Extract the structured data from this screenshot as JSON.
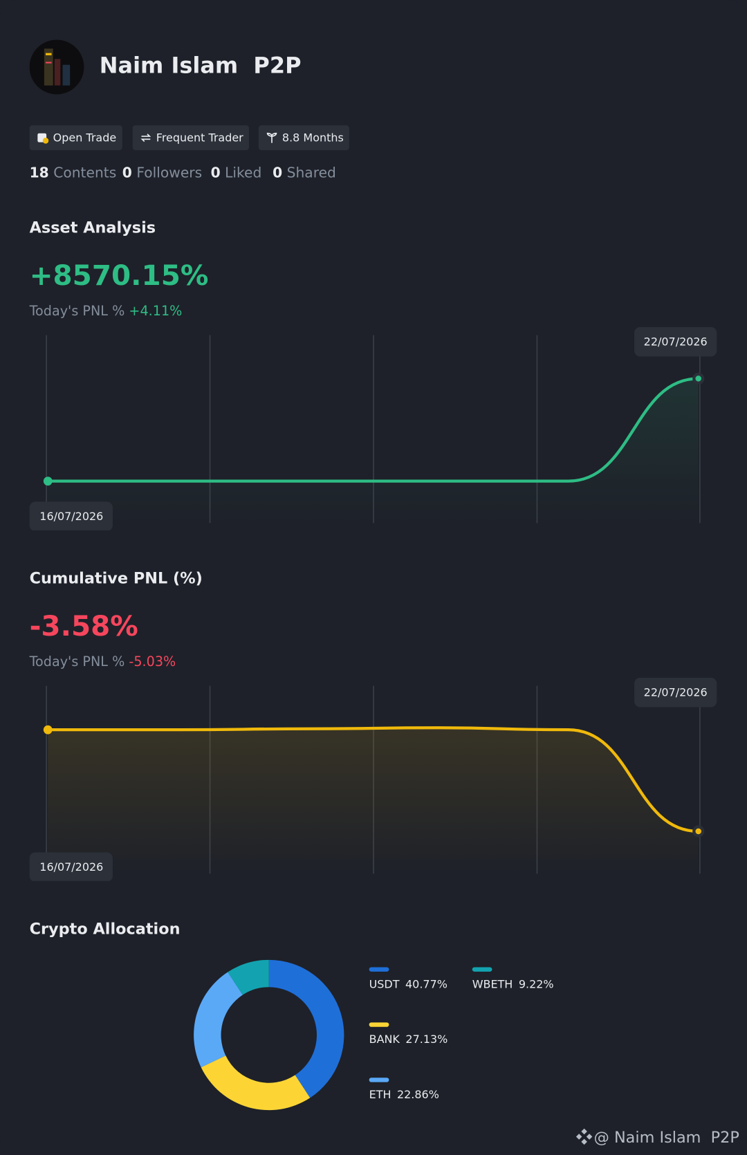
{
  "profile": {
    "name": "Naim Islam  P2P",
    "badges": [
      "Open Trade",
      "Frequent Trader",
      "8.8 Months"
    ],
    "stats": [
      {
        "value": "18",
        "label": "Contents"
      },
      {
        "value": "0",
        "label": "Followers"
      },
      {
        "value": "0",
        "label": "Liked"
      },
      {
        "value": "0",
        "label": "Shared"
      }
    ]
  },
  "asset_analysis": {
    "title": "Asset Analysis",
    "total": "+8570.15%",
    "today_label": "Today's PNL %",
    "today_value": "+4.11%",
    "chart_data": {
      "type": "line",
      "categories": [
        "16/07/2026",
        null,
        null,
        null,
        null,
        "22/07/2026"
      ],
      "values": [
        0,
        0,
        0,
        0,
        0,
        8570.15
      ],
      "color": "#2ebd85",
      "ylim": [
        -3500,
        12200
      ]
    }
  },
  "cumulative_pnl": {
    "title": "Cumulative PNL (%)",
    "total": "-3.58%",
    "today_label": "Today's PNL %",
    "today_value": "-5.03%",
    "chart_data": {
      "type": "line",
      "categories": [
        "16/07/2026",
        null,
        null,
        null,
        null,
        "22/07/2026"
      ],
      "values": [
        1.5,
        1.5,
        1.55,
        1.6,
        1.5,
        -3.58
      ],
      "color": "#f0b90b",
      "ylim": [
        -5.7,
        3.7
      ]
    }
  },
  "crypto_allocation": {
    "title": "Crypto Allocation",
    "chart_data": {
      "type": "donut",
      "categories": [
        "USDT",
        "BANK",
        "ETH",
        "WBETH"
      ],
      "values": [
        40.77,
        27.13,
        22.86,
        9.22
      ],
      "value_labels": [
        "40.77%",
        "27.13%",
        "22.86%",
        "9.22%"
      ],
      "colors": [
        "#1f6fd9",
        "#fcd535",
        "#5aa9f7",
        "#13a3b0"
      ]
    }
  },
  "footer": "@ Naim Islam  P2P"
}
